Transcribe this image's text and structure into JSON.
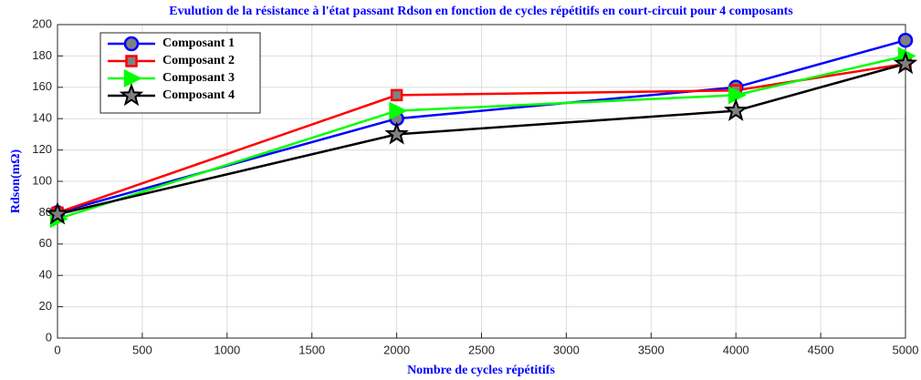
{
  "chart_data": {
    "type": "line",
    "title": "Evulution de la résistance à l'état passant Rdson en fonction de cycles répétitifs en court-circuit pour 4 composants",
    "x_label": "Nombre de cycles répétitifs",
    "y_label": "Rdson(mΩ)",
    "x": [
      0,
      2000,
      4000,
      5000
    ],
    "series": [
      {
        "name": "Composant 1",
        "color": "#0000ff",
        "marker": "circle",
        "marker_face": "#808080",
        "values": [
          80,
          140,
          160,
          190
        ]
      },
      {
        "name": "Composant 2",
        "color": "#ff0000",
        "marker": "square",
        "marker_face": "#808080",
        "values": [
          80,
          155,
          158,
          175
        ]
      },
      {
        "name": "Composant 3",
        "color": "#00ff00",
        "marker": "triangle-right",
        "marker_face": "#00ff00",
        "values": [
          76,
          145,
          155,
          180
        ]
      },
      {
        "name": "Composant 4",
        "color": "#000000",
        "marker": "star",
        "marker_face": "#808080",
        "values": [
          79,
          130,
          145,
          175
        ]
      }
    ],
    "xlim": [
      0,
      5000
    ],
    "xticks": [
      0,
      500,
      1000,
      1500,
      2000,
      2500,
      3000,
      3500,
      4000,
      4500,
      5000
    ],
    "ylim": [
      0,
      200
    ],
    "yticks": [
      0,
      20,
      40,
      60,
      80,
      100,
      120,
      140,
      160,
      180,
      200
    ],
    "grid": true,
    "legend": "upper-left"
  }
}
